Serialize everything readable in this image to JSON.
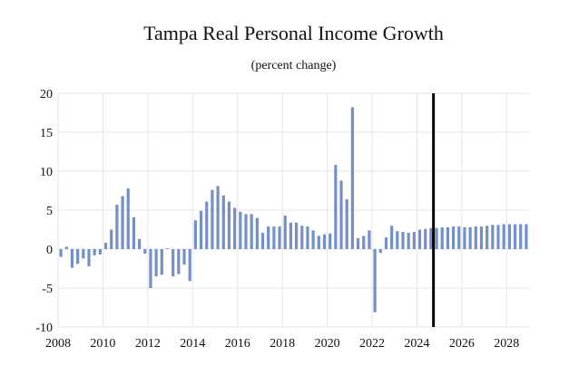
{
  "chart_data": {
    "type": "bar",
    "title": "Tampa Real Personal Income Growth",
    "subtitle": "(percent change)",
    "xlabel": "",
    "ylabel": "",
    "ylim": [
      -10,
      20
    ],
    "yticks": [
      20,
      15,
      10,
      5,
      0,
      -5,
      -10
    ],
    "xticks": [
      "2008",
      "2010",
      "2012",
      "2014",
      "2016",
      "2018",
      "2020",
      "2022",
      "2024",
      "2026",
      "2028"
    ],
    "grid": true,
    "forecast_marker": "2024 Q4",
    "color": "#7590c4",
    "start": "2008 Q1",
    "frequency": "quarterly",
    "values": [
      -1.0,
      0.3,
      -2.4,
      -1.9,
      -1.2,
      -2.2,
      -0.8,
      -0.7,
      0.8,
      2.5,
      5.7,
      6.8,
      7.8,
      4.1,
      1.3,
      -0.6,
      -5.0,
      -3.5,
      -3.3,
      0.1,
      -3.5,
      -3.2,
      -2.0,
      -4.1,
      3.7,
      4.9,
      6.1,
      7.6,
      8.1,
      6.9,
      6.1,
      5.3,
      4.8,
      4.5,
      4.5,
      4.0,
      2.1,
      2.9,
      2.9,
      2.9,
      4.3,
      3.4,
      3.4,
      3.0,
      2.9,
      2.4,
      1.7,
      1.9,
      2.0,
      10.8,
      8.8,
      6.4,
      18.2,
      1.4,
      1.7,
      2.4,
      -8.1,
      -0.5,
      1.5,
      3.0,
      2.3,
      2.2,
      2.1,
      2.2,
      2.5,
      2.6,
      2.7,
      2.7,
      2.8,
      2.8,
      2.9,
      2.9,
      2.8,
      2.8,
      2.9,
      2.9,
      3.0,
      3.1,
      3.1,
      3.2,
      3.2,
      3.2,
      3.2,
      3.2
    ]
  }
}
